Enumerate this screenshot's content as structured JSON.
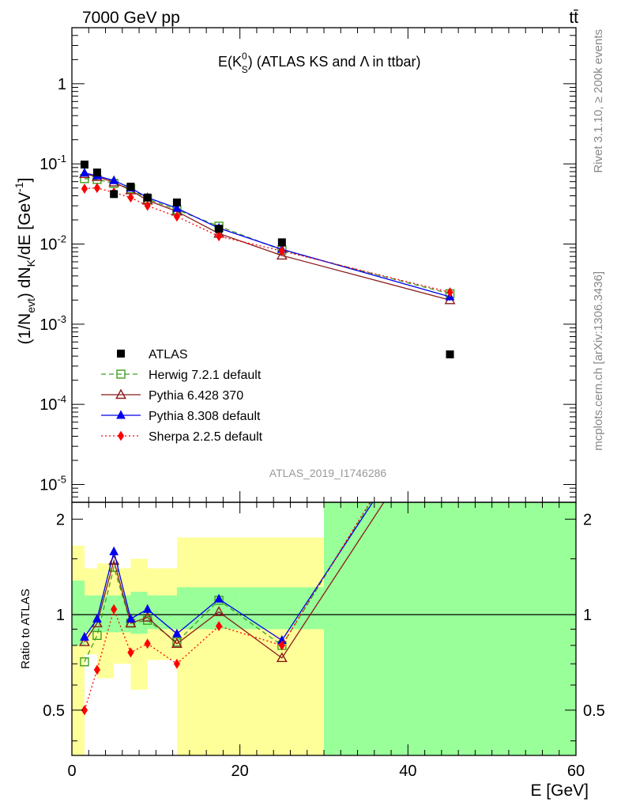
{
  "header": {
    "left": "7000 GeV pp",
    "right": "tt̄"
  },
  "side_labels": {
    "rivet": "Rivet 3.1.10, ≥ 200k events",
    "mcplots": "mcplots.cern.ch [arXiv:1306.3436]"
  },
  "chart_data": {
    "type": "line",
    "title": "E(K⁰S) (ATLAS KS and Λ in ttbar)",
    "title_parts": {
      "main": "E(K",
      "sup": "0",
      "sub": "S",
      "tail": ") (ATLAS KS and Λ in ttbar)"
    },
    "analysis_label": "ATLAS_2019_I1746286",
    "xlabel": "E [GeV]",
    "ylabel": "(1/N_evt) dN_K/dE [GeV^-1]",
    "ylabel_parts": {
      "a": "(1/N",
      "sub1": "evt",
      "b": ") dN",
      "sub2": "K",
      "c": "/dE [GeV",
      "sup": "-1",
      "d": "]"
    },
    "ratio_ylabel": "Ratio to ATLAS",
    "xlim": [
      0,
      60
    ],
    "ylim": [
      6e-06,
      5
    ],
    "yscale": "log",
    "ratio_ylim": [
      0.36,
      2.26
    ],
    "ratio_yscale": "log",
    "x_ticks": [
      "0",
      "20",
      "40",
      "60"
    ],
    "y_tick_labels": [
      {
        "mant": "10",
        "exp": "-5",
        "v": 1e-05
      },
      {
        "mant": "10",
        "exp": "-4",
        "v": 0.0001
      },
      {
        "mant": "10",
        "exp": "-3",
        "v": 0.001
      },
      {
        "mant": "10",
        "exp": "-2",
        "v": 0.01
      },
      {
        "mant": "10",
        "exp": "-1",
        "v": 0.1
      },
      {
        "mant": "1",
        "exp": "",
        "v": 1
      }
    ],
    "ratio_ticks": [
      {
        "label": "0.5",
        "v": 0.5
      },
      {
        "label": "1",
        "v": 1
      },
      {
        "label": "2",
        "v": 2
      }
    ],
    "legend_position": "bottom-left",
    "data": {
      "name": "ATLAS",
      "color": "#000000",
      "x": [
        1.5,
        3,
        5,
        7,
        9,
        12.5,
        17.5,
        25,
        45
      ],
      "y": [
        0.098,
        0.078,
        0.042,
        0.052,
        0.038,
        0.033,
        0.0155,
        0.0105,
        0.00042
      ],
      "band_edges": [
        0,
        1.5,
        3,
        5,
        7,
        9,
        12.5,
        15,
        20,
        30,
        60
      ],
      "stat_band": [
        [
          0.8,
          1.28
        ],
        [
          0.88,
          1.15
        ],
        [
          0.88,
          1.15
        ],
        [
          0.88,
          1.15
        ],
        [
          0.87,
          1.18
        ],
        [
          0.9,
          1.15
        ],
        [
          0.9,
          1.22
        ],
        [
          0.9,
          1.22
        ],
        [
          0.9,
          1.22
        ],
        [
          0.3,
          8.0
        ]
      ],
      "total_band": [
        [
          0.36,
          1.65
        ],
        [
          0.75,
          1.4
        ],
        [
          0.63,
          1.45
        ],
        [
          0.7,
          1.4
        ],
        [
          0.58,
          1.5
        ],
        [
          0.72,
          1.4
        ],
        [
          0.36,
          1.75
        ],
        [
          0.36,
          1.75
        ],
        [
          0.36,
          1.75
        ],
        [
          0.3,
          8.0
        ]
      ]
    },
    "series": [
      {
        "name": "Herwig 7.2.1 default",
        "color": "#3f9f1f",
        "dash": "6,4",
        "marker": "open-square",
        "x": [
          1.5,
          3,
          5,
          7,
          9,
          12.5,
          17.5,
          25,
          45
        ],
        "ratio": [
          0.71,
          0.86,
          1.41,
          0.94,
          0.96,
          0.82,
          1.11,
          0.8,
          5.7
        ],
        "y": [
          0.0655,
          0.064,
          0.057,
          0.049,
          0.0365,
          0.0267,
          0.0167,
          0.0084,
          0.0024
        ]
      },
      {
        "name": "Pythia 6.428 370",
        "color": "#8b1a1a",
        "dash": "",
        "marker": "open-triangle",
        "x": [
          1.5,
          3,
          5,
          7,
          9,
          12.5,
          17.5,
          25,
          45
        ],
        "ratio": [
          0.82,
          0.94,
          1.48,
          0.94,
          0.98,
          0.81,
          1.02,
          0.73,
          4.7
        ],
        "y": [
          0.075,
          0.069,
          0.059,
          0.047,
          0.035,
          0.0255,
          0.0135,
          0.0072,
          0.002
        ]
      },
      {
        "name": "Pythia 8.308 default",
        "color": "#0000ee",
        "dash": "",
        "marker": "filled-triangle",
        "x": [
          1.5,
          3,
          5,
          7,
          9,
          12.5,
          17.5,
          25,
          45
        ],
        "ratio": [
          0.85,
          0.97,
          1.58,
          0.97,
          1.04,
          0.87,
          1.12,
          0.83,
          5.3
        ],
        "y": [
          0.077,
          0.071,
          0.062,
          0.05,
          0.038,
          0.028,
          0.0158,
          0.0086,
          0.0022
        ]
      },
      {
        "name": "Sherpa 2.2.5 default",
        "color": "#ff0000",
        "dash": "2,3",
        "marker": "filled-diamond",
        "x": [
          1.5,
          3,
          5,
          7,
          9,
          12.5,
          17.5,
          25,
          45
        ],
        "ratio": [
          0.5,
          0.67,
          1.04,
          0.76,
          0.81,
          0.7,
          0.92,
          0.8,
          5.8
        ],
        "y": [
          0.049,
          0.05,
          0.044,
          0.038,
          0.03,
          0.022,
          0.0125,
          0.0082,
          0.0025
        ]
      }
    ]
  }
}
